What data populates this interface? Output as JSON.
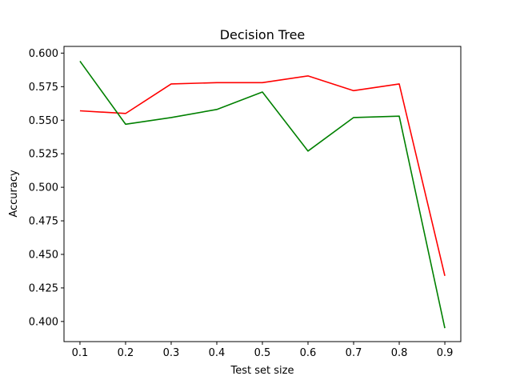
{
  "chart_data": {
    "type": "line",
    "title": "Decision Tree",
    "xlabel": "Test set size",
    "ylabel": "Accuracy",
    "xlim": [
      0.065,
      0.935
    ],
    "ylim": [
      0.385,
      0.605
    ],
    "xticks": [
      0.1,
      0.2,
      0.3,
      0.4,
      0.5,
      0.6,
      0.7,
      0.8,
      0.9
    ],
    "xtick_labels": [
      "0.1",
      "0.2",
      "0.3",
      "0.4",
      "0.5",
      "0.6",
      "0.7",
      "0.8",
      "0.9"
    ],
    "yticks": [
      0.4,
      0.425,
      0.45,
      0.475,
      0.5,
      0.525,
      0.55,
      0.575,
      0.6
    ],
    "ytick_labels": [
      "0.400",
      "0.425",
      "0.450",
      "0.475",
      "0.500",
      "0.525",
      "0.550",
      "0.575",
      "0.600"
    ],
    "grid": false,
    "x": [
      0.1,
      0.2,
      0.3,
      0.4,
      0.5,
      0.6,
      0.7,
      0.8,
      0.9
    ],
    "series": [
      {
        "color": "#ff0000",
        "values": [
          0.557,
          0.555,
          0.577,
          0.578,
          0.578,
          0.583,
          0.572,
          0.577,
          0.434
        ]
      },
      {
        "color": "#008000",
        "values": [
          0.594,
          0.547,
          0.552,
          0.558,
          0.571,
          0.527,
          0.552,
          0.553,
          0.395
        ]
      }
    ]
  }
}
